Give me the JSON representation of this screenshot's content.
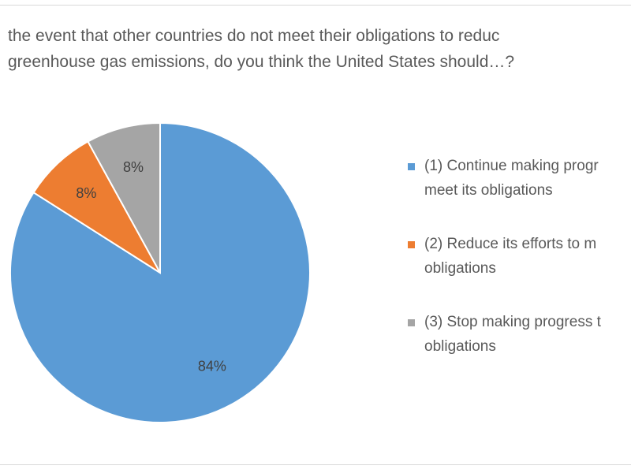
{
  "chart_data": {
    "type": "pie",
    "title_lines": [
      "the event that other countries do not meet their obligations to reduc",
      "greenhouse gas emissions, do you think the United States should…?"
    ],
    "slices": [
      {
        "label_lines": [
          "(1) Continue making progr",
          "meet its obligations"
        ],
        "value": 84,
        "data_label": "84%",
        "color": "#5b9bd5"
      },
      {
        "label_lines": [
          "(2) Reduce its efforts to m",
          "obligations"
        ],
        "value": 8,
        "data_label": "8%",
        "color": "#ed7d31"
      },
      {
        "label_lines": [
          "(3) Stop making progress t",
          "obligations"
        ],
        "value": 8,
        "data_label": "8%",
        "color": "#a5a5a5"
      }
    ],
    "start_angle_deg": 0,
    "direction": "clockwise",
    "legend_position": "right"
  }
}
